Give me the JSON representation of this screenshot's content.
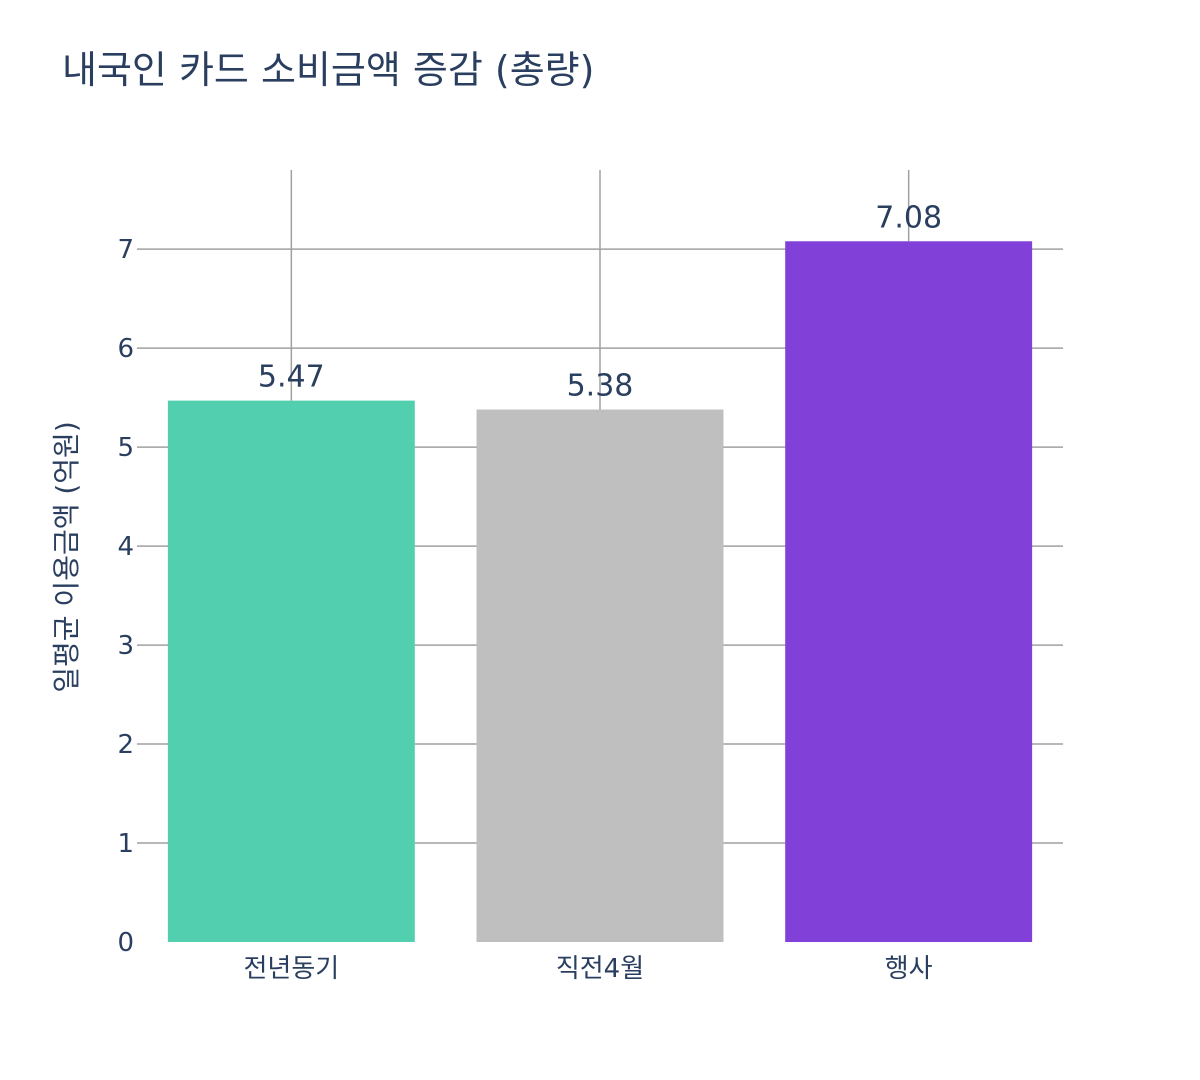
{
  "chart_data": {
    "type": "bar",
    "title": "내국인 카드 소비금액 증감 (총량)",
    "ylabel": "일평균 이용금액 (억원)",
    "xlabel": "",
    "categories": [
      "전년동기",
      "직전4월",
      "행사"
    ],
    "values": [
      5.47,
      5.38,
      7.08
    ],
    "value_labels": [
      "5.47",
      "5.38",
      "7.08"
    ],
    "colors": [
      "#52cfae",
      "#bfbfbf",
      "#8141d8"
    ],
    "ylim": [
      0,
      7.8
    ],
    "yticks": [
      0,
      1,
      2,
      3,
      4,
      5,
      6,
      7
    ],
    "grid": true
  }
}
